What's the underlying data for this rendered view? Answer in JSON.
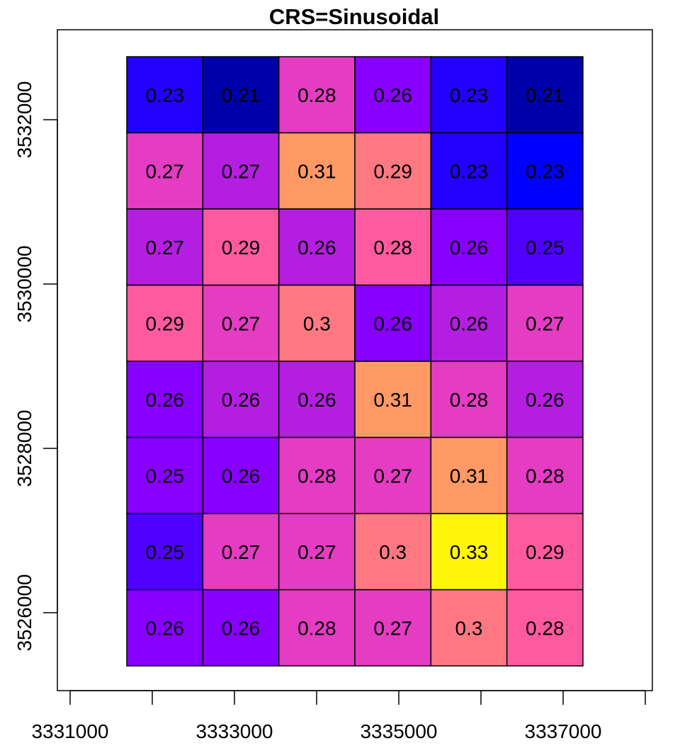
{
  "chart_data": {
    "type": "heatmap",
    "title": "CRS=Sinusoidal",
    "xlabel": "",
    "ylabel": "",
    "xlim": [
      3330845,
      3338086
    ],
    "ylim": [
      3525052,
      3533095
    ],
    "grid_extent": {
      "xmin": 3331690,
      "xmax": 3337241,
      "ymin": 3525353,
      "ymax": 3532767
    },
    "x_ticks": [
      3331000,
      3332000,
      3333000,
      3334000,
      3335000,
      3336000,
      3337000,
      3338000
    ],
    "x_tick_labels": [
      "3331000",
      "",
      "3333000",
      "",
      "3335000",
      "",
      "3337000",
      ""
    ],
    "y_ticks": [
      3526000,
      3528000,
      3530000,
      3532000
    ],
    "y_tick_labels": [
      "3526000",
      "3528000",
      "3530000",
      "3532000"
    ],
    "grid": false,
    "legend": "none",
    "rows_top_to_bottom": [
      [
        "0.23",
        "0.21",
        "0.28",
        "0.26",
        "0.23",
        "0.21"
      ],
      [
        "0.27",
        "0.27",
        "0.31",
        "0.29",
        "0.23",
        "0.23"
      ],
      [
        "0.27",
        "0.29",
        "0.26",
        "0.28",
        "0.26",
        "0.25"
      ],
      [
        "0.29",
        "0.27",
        "0.3",
        "0.26",
        "0.26",
        "0.27"
      ],
      [
        "0.26",
        "0.26",
        "0.26",
        "0.31",
        "0.28",
        "0.26"
      ],
      [
        "0.25",
        "0.26",
        "0.28",
        "0.27",
        "0.31",
        "0.28"
      ],
      [
        "0.25",
        "0.27",
        "0.27",
        "0.3",
        "0.33",
        "0.29"
      ],
      [
        "0.26",
        "0.26",
        "0.28",
        "0.27",
        "0.3",
        "0.28"
      ]
    ],
    "cell_colors": [
      [
        "#2200ff",
        "#0000aa",
        "#e43cc3",
        "#8800ff",
        "#2200ff",
        "#0000aa"
      ],
      [
        "#e43cc3",
        "#b41ee0",
        "#ff9966",
        "#ff7882",
        "#2200ff",
        "#0000ff"
      ],
      [
        "#b41ee0",
        "#ff5aa0",
        "#b41ee0",
        "#ff5aa0",
        "#8800ff",
        "#5000ff"
      ],
      [
        "#ff5aa0",
        "#e43cc3",
        "#ff7882",
        "#8800ff",
        "#b41ee0",
        "#e43cc3"
      ],
      [
        "#8800ff",
        "#b41ee0",
        "#b41ee0",
        "#ff9966",
        "#e43cc3",
        "#b41ee0"
      ],
      [
        "#8800ff",
        "#8800ff",
        "#e43cc3",
        "#e43cc3",
        "#ff9966",
        "#e43cc3"
      ],
      [
        "#5000ff",
        "#e43cc3",
        "#e43cc3",
        "#ff7882",
        "#fff50a",
        "#ff5aa0"
      ],
      [
        "#8800ff",
        "#8800ff",
        "#e43cc3",
        "#e43cc3",
        "#ff7882",
        "#ff5aa0"
      ]
    ]
  }
}
